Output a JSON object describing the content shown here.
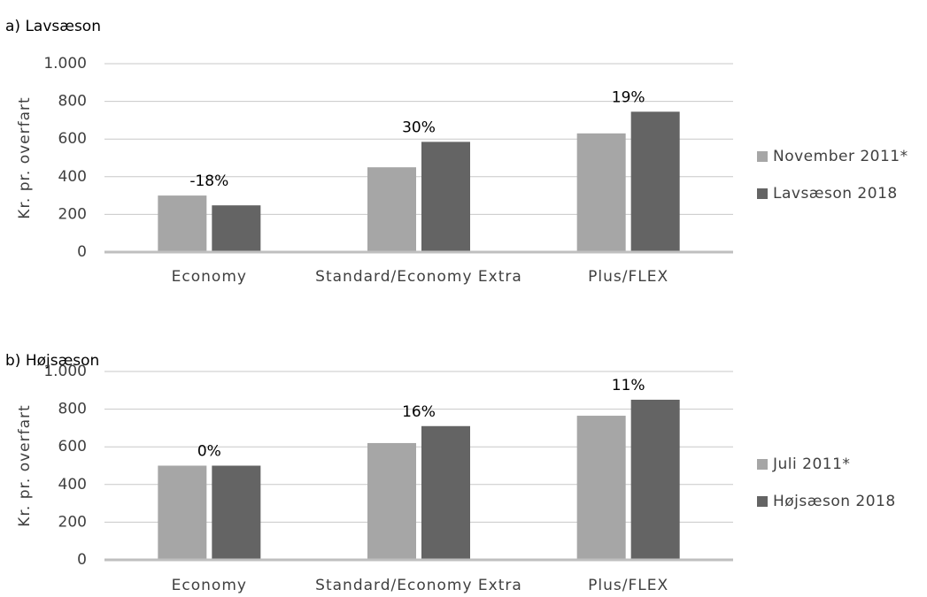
{
  "chart_data": [
    {
      "type": "bar",
      "title": "a) Lavsæson",
      "y_label": "Kr. pr. overfart",
      "categories": [
        "Economy",
        "Standard/Economy Extra",
        "Plus/FLEX"
      ],
      "series": [
        {
          "name": "November 2011*",
          "color": "#a6a6a6",
          "values": [
            300,
            450,
            630
          ]
        },
        {
          "name": "Lavsæson 2018",
          "color": "#646464",
          "values": [
            248,
            585,
            745
          ]
        }
      ],
      "annotations": [
        "-18%",
        "30%",
        "19%"
      ],
      "ylim": [
        0,
        1000
      ],
      "yticks": [
        0,
        200,
        400,
        600,
        800,
        {
          "value": 1000,
          "label": "1.000"
        }
      ],
      "grid": true
    },
    {
      "type": "bar",
      "title": "b) Højsæson",
      "y_label": "Kr. pr. overfart",
      "categories": [
        "Economy",
        "Standard/Economy Extra",
        "Plus/FLEX"
      ],
      "series": [
        {
          "name": "Juli 2011*",
          "color": "#a6a6a6",
          "values": [
            500,
            620,
            765
          ]
        },
        {
          "name": "Højsæson 2018",
          "color": "#646464",
          "values": [
            500,
            710,
            850
          ]
        }
      ],
      "annotations": [
        "0%",
        "16%",
        "11%"
      ],
      "ylim": [
        0,
        1000
      ],
      "yticks": [
        0,
        200,
        400,
        600,
        800,
        {
          "value": 1000,
          "label": "1.000"
        }
      ],
      "grid": true
    }
  ]
}
